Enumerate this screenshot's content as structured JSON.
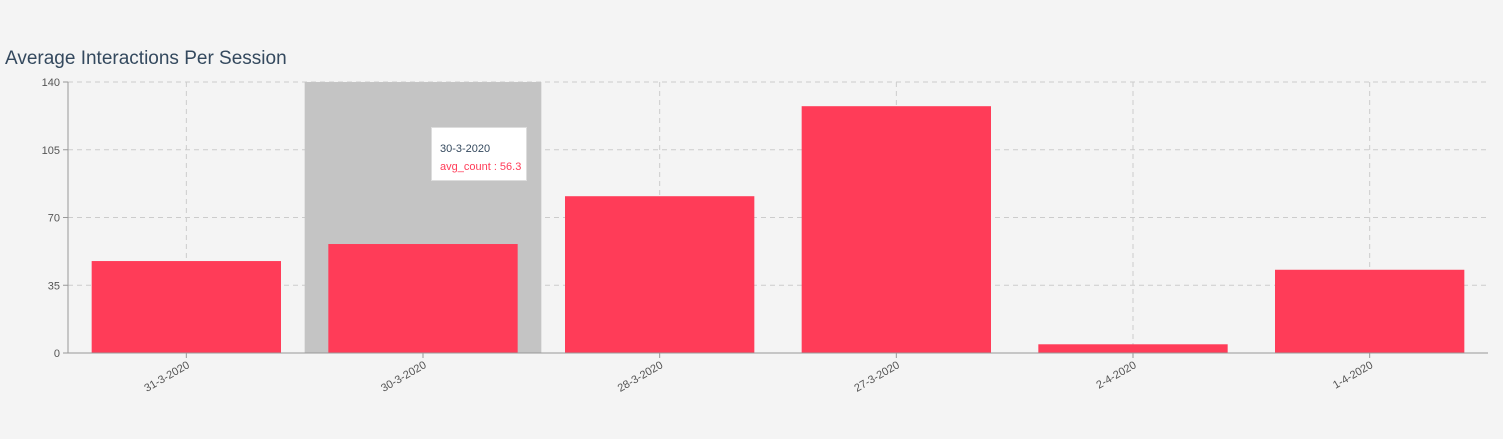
{
  "colors": {
    "bar": "#ff3c58",
    "hover_band": "#c4c4c4",
    "background": "#f4f4f4",
    "grid": "#cccccc",
    "title": "#34495e"
  },
  "chart_data": {
    "type": "bar",
    "title": "Average Interactions Per Session",
    "xlabel": "",
    "ylabel": "",
    "categories": [
      "31-3-2020",
      "30-3-2020",
      "28-3-2020",
      "27-3-2020",
      "2-4-2020",
      "1-4-2020"
    ],
    "series": [
      {
        "values": [
          47.5,
          56.3,
          81,
          127.5,
          4.5,
          43
        ]
      }
    ],
    "ylim": [
      0,
      140
    ],
    "yticks": [
      0,
      35,
      70,
      105,
      140
    ],
    "grid": true,
    "highlighted_category": "30-3-2020"
  },
  "tooltip": {
    "label": "30-3-2020",
    "row": "avg_count : 56.3"
  }
}
